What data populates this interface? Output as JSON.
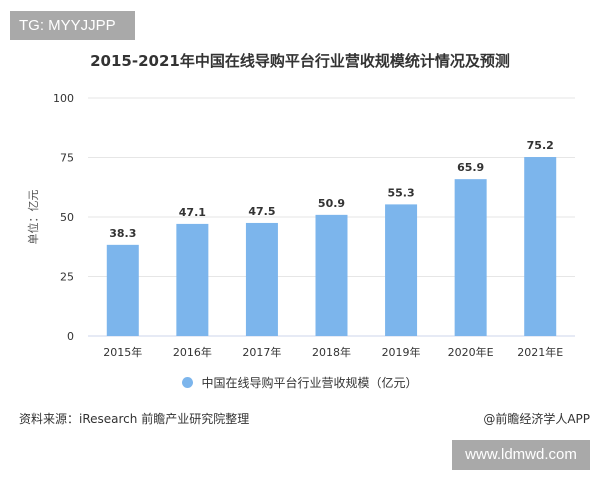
{
  "tag_label": "TG: MYYJJPP",
  "watermark_url": "www.ldmwd.com",
  "source": "资料来源：iResearch 前瞻产业研究院整理",
  "credit": "@前瞻经济学人APP",
  "chart_data": {
    "type": "bar",
    "title": "2015-2021年中国在线导购平台行业营收规模统计情况及预测",
    "ylabel": "单位：亿元",
    "xlabel": "",
    "categories": [
      "2015年",
      "2016年",
      "2017年",
      "2018年",
      "2019年",
      "2020年E",
      "2021年E"
    ],
    "series": [
      {
        "name": "中国在线导购平台行业营收规模（亿元）",
        "values": [
          38.3,
          47.1,
          47.5,
          50.9,
          55.3,
          65.9,
          75.2
        ],
        "color": "#7cb5ec"
      }
    ],
    "ylim": [
      0,
      100
    ],
    "yticks": [
      0,
      25,
      50,
      75,
      100
    ],
    "grid": true,
    "legend": "bottom"
  }
}
